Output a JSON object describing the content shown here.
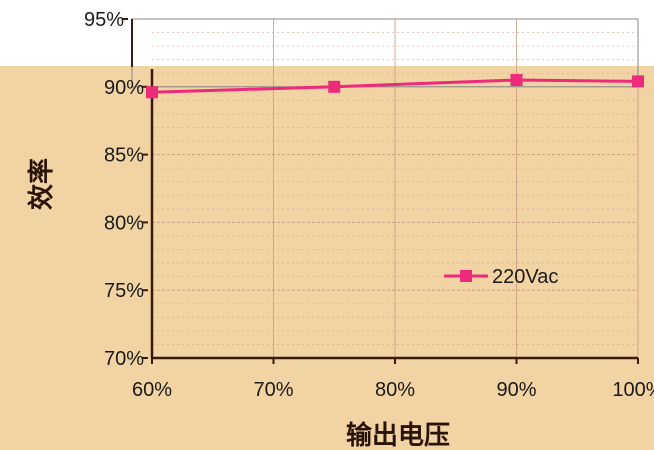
{
  "chart_data": {
    "type": "line",
    "x": [
      "60%",
      "75%",
      "90%",
      "100%"
    ],
    "series": [
      {
        "name": "220Vac",
        "values": [
          89.6,
          90.0,
          90.5,
          90.4
        ],
        "color": "#ee2a7b"
      }
    ],
    "xticks": [
      "60%",
      "70%",
      "80%",
      "90%",
      "100%"
    ],
    "xtick_values": [
      60,
      70,
      80,
      90,
      100
    ],
    "x_values": [
      60,
      75,
      90,
      100
    ],
    "yticks": [
      "70%",
      "75%",
      "80%",
      "85%",
      "90%",
      "95%"
    ],
    "ylim": [
      70,
      95
    ],
    "xlim": [
      60,
      100
    ],
    "xlabel": "输出电压",
    "ylabel": "效率",
    "grid": true,
    "legend_position": "right"
  },
  "colors": {
    "background_band": "#f2d3a4",
    "axis": "#3a1a0a",
    "grid": "#c89a80",
    "line": "#ee2a7b"
  }
}
